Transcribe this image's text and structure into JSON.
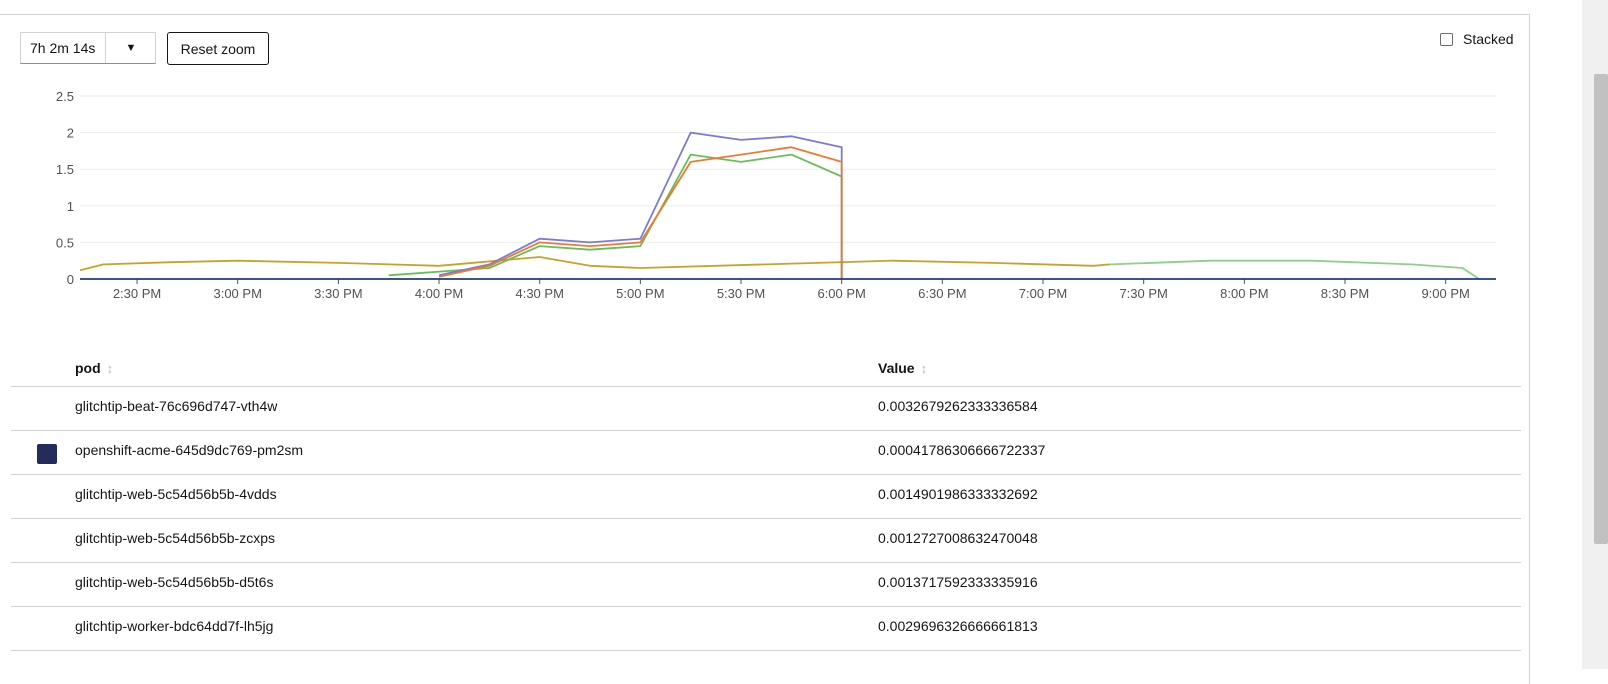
{
  "toolbar": {
    "time_range": "7h 2m 14s",
    "reset_label": "Reset zoom",
    "stacked_label": "Stacked"
  },
  "chart_data": {
    "type": "line",
    "y_ticks": [
      "0",
      "0.5",
      "1",
      "1.5",
      "2",
      "2.5"
    ],
    "x_ticks": [
      "2:30 PM",
      "3:00 PM",
      "3:30 PM",
      "4:00 PM",
      "4:30 PM",
      "5:00 PM",
      "5:30 PM",
      "6:00 PM",
      "6:30 PM",
      "7:00 PM",
      "7:30 PM",
      "8:00 PM",
      "8:30 PM",
      "9:00 PM"
    ],
    "ylim": [
      0,
      2.5
    ],
    "x_range": [
      "2:13 PM",
      "9:15 PM"
    ],
    "grid": true,
    "series": [
      {
        "color": "#c9a227",
        "points": [
          [
            "2:13 PM",
            0.12
          ],
          [
            "2:20 PM",
            0.2
          ],
          [
            "2:40 PM",
            0.23
          ],
          [
            "3:00 PM",
            0.25
          ],
          [
            "3:30 PM",
            0.22
          ],
          [
            "4:00 PM",
            0.18
          ],
          [
            "4:30 PM",
            0.3
          ],
          [
            "4:45 PM",
            0.18
          ],
          [
            "5:00 PM",
            0.15
          ],
          [
            "6:15 PM",
            0.25
          ],
          [
            "6:45 PM",
            0.22
          ],
          [
            "7:15 PM",
            0.18
          ],
          [
            "7:20 PM",
            0.2
          ]
        ]
      },
      {
        "color": "#8bd08b",
        "points": [
          [
            "7:20 PM",
            0.2
          ],
          [
            "7:50 PM",
            0.25
          ],
          [
            "8:20 PM",
            0.25
          ],
          [
            "8:50 PM",
            0.2
          ],
          [
            "9:05 PM",
            0.15
          ],
          [
            "9:10 PM",
            0.0
          ]
        ]
      },
      {
        "color": "#6bbd5b",
        "points": [
          [
            "3:45 PM",
            0.05
          ],
          [
            "4:15 PM",
            0.15
          ],
          [
            "4:30 PM",
            0.45
          ],
          [
            "4:45 PM",
            0.4
          ],
          [
            "5:00 PM",
            0.45
          ],
          [
            "5:15 PM",
            1.7
          ],
          [
            "5:30 PM",
            1.6
          ],
          [
            "5:45 PM",
            1.7
          ],
          [
            "6:00 PM",
            1.4
          ],
          [
            "6:00 PM",
            0.0
          ]
        ]
      },
      {
        "color": "#7b7ad8",
        "points": [
          [
            "4:00 PM",
            0.05
          ],
          [
            "4:15 PM",
            0.2
          ],
          [
            "4:30 PM",
            0.55
          ],
          [
            "4:45 PM",
            0.5
          ],
          [
            "5:00 PM",
            0.55
          ],
          [
            "5:15 PM",
            2.0
          ],
          [
            "5:30 PM",
            1.9
          ],
          [
            "5:45 PM",
            1.95
          ],
          [
            "6:00 PM",
            1.8
          ],
          [
            "6:00 PM",
            0.0
          ]
        ]
      },
      {
        "color": "#ec7a2f",
        "points": [
          [
            "4:00 PM",
            0.03
          ],
          [
            "4:15 PM",
            0.18
          ],
          [
            "4:30 PM",
            0.5
          ],
          [
            "4:45 PM",
            0.45
          ],
          [
            "5:00 PM",
            0.5
          ],
          [
            "5:15 PM",
            1.6
          ],
          [
            "5:30 PM",
            1.7
          ],
          [
            "5:45 PM",
            1.8
          ],
          [
            "6:00 PM",
            1.6
          ],
          [
            "6:00 PM",
            0.0
          ]
        ]
      },
      {
        "color": "#1f3b7a",
        "points": [
          [
            "2:13 PM",
            0.0
          ],
          [
            "9:15 PM",
            0.0
          ]
        ]
      }
    ]
  },
  "table": {
    "col_pod": "pod",
    "col_value": "Value",
    "sort_icon": "↕",
    "rows": [
      {
        "pod": "glitchtip-beat-76c696d747-vth4w",
        "value": "0.0032679262333336584",
        "swatch": ""
      },
      {
        "pod": "openshift-acme-645d9dc769-pm2sm",
        "value": "0.00041786306666722337",
        "swatch": "#252b5c"
      },
      {
        "pod": "glitchtip-web-5c54d56b5b-4vdds",
        "value": "0.0014901986333332692",
        "swatch": ""
      },
      {
        "pod": "glitchtip-web-5c54d56b5b-zcxps",
        "value": "0.0012727008632470048",
        "swatch": ""
      },
      {
        "pod": "glitchtip-web-5c54d56b5b-d5t6s",
        "value": "0.0013717592333335916",
        "swatch": ""
      },
      {
        "pod": "glitchtip-worker-bdc64dd7f-lh5jg",
        "value": "0.0029696326666661813",
        "swatch": ""
      }
    ]
  }
}
